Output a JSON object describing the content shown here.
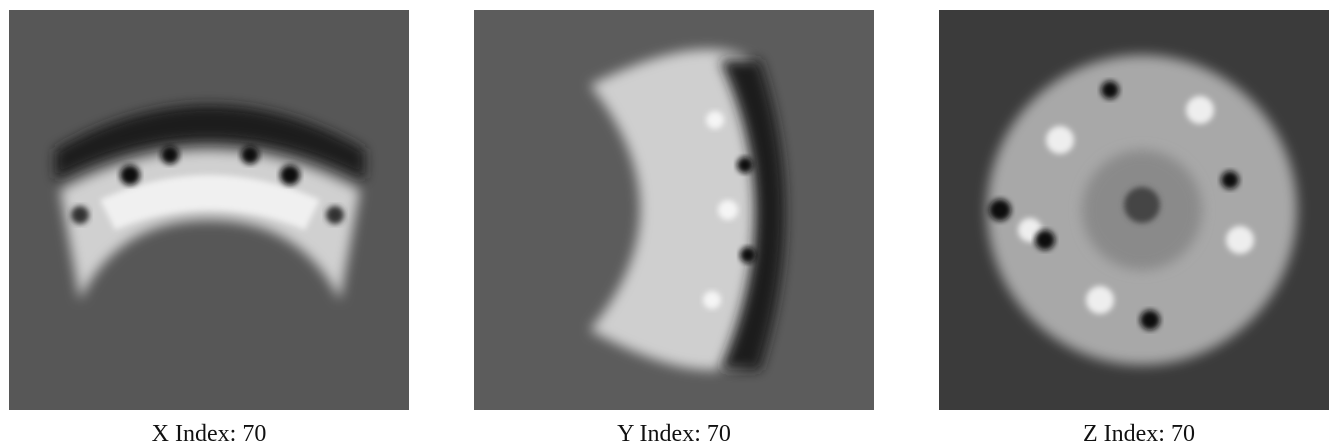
{
  "panels": [
    {
      "caption": "X Index: 70"
    },
    {
      "caption": "Y Index: 70"
    },
    {
      "caption": "Z Index: 70"
    }
  ]
}
